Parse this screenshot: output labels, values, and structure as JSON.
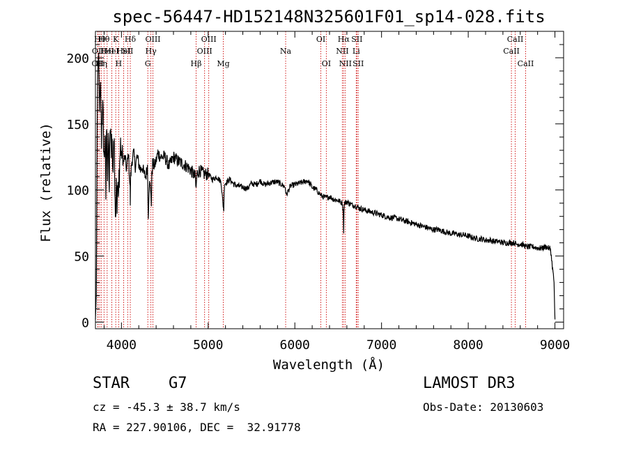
{
  "chart_data": {
    "type": "line",
    "title": "spec-56447-HD152148N325601F01_sp14-028.fits",
    "xlabel": "Wavelength (Å)",
    "ylabel": "Flux (relative)",
    "xlim": [
      3700,
      9100
    ],
    "ylim": [
      -5,
      220
    ],
    "xticks": [
      4000,
      5000,
      6000,
      7000,
      8000,
      9000
    ],
    "yticks": [
      0,
      50,
      100,
      150,
      200
    ],
    "series": [
      {
        "name": "spectrum",
        "x": [
          3700,
          3710,
          3720,
          3730,
          3740,
          3750,
          3760,
          3770,
          3780,
          3790,
          3800,
          3810,
          3820,
          3830,
          3840,
          3850,
          3860,
          3870,
          3880,
          3890,
          3900,
          3910,
          3920,
          3930,
          3933,
          3936,
          3940,
          3950,
          3960,
          3965,
          3968,
          3972,
          3980,
          3990,
          4000,
          4010,
          4020,
          4040,
          4060,
          4080,
          4100,
          4102,
          4106,
          4120,
          4140,
          4160,
          4180,
          4200,
          4220,
          4240,
          4260,
          4280,
          4300,
          4305,
          4310,
          4320,
          4340,
          4345,
          4350,
          4360,
          4380,
          4400,
          4420,
          4450,
          4500,
          4550,
          4600,
          4650,
          4700,
          4750,
          4800,
          4850,
          4861,
          4870,
          4900,
          4950,
          5000,
          5050,
          5100,
          5150,
          5170,
          5180,
          5184,
          5190,
          5200,
          5250,
          5300,
          5350,
          5400,
          5450,
          5500,
          5550,
          5600,
          5650,
          5700,
          5750,
          5800,
          5850,
          5890,
          5900,
          5950,
          6000,
          6050,
          6100,
          6150,
          6200,
          6250,
          6300,
          6350,
          6400,
          6450,
          6500,
          6550,
          6560,
          6563,
          6566,
          6570,
          6600,
          6650,
          6700,
          6750,
          6800,
          6850,
          6900,
          6950,
          7000,
          7050,
          7100,
          7150,
          7200,
          7250,
          7300,
          7350,
          7400,
          7450,
          7500,
          7550,
          7600,
          7650,
          7700,
          7750,
          7800,
          7850,
          7900,
          7950,
          8000,
          8050,
          8100,
          8150,
          8200,
          8250,
          8300,
          8350,
          8400,
          8450,
          8500,
          8540,
          8550,
          8600,
          8650,
          8662,
          8700,
          8750,
          8800,
          8850,
          8900,
          8950,
          8990,
          9000
        ],
        "y": [
          2,
          20,
          150,
          200,
          185,
          160,
          175,
          140,
          165,
          150,
          120,
          145,
          95,
          155,
          110,
          140,
          100,
          150,
          130,
          145,
          110,
          140,
          120,
          90,
          75,
          95,
          115,
          90,
          105,
          85,
          95,
          110,
          120,
          135,
          125,
          130,
          120,
          125,
          115,
          128,
          100,
          90,
          110,
          122,
          128,
          118,
          125,
          120,
          115,
          118,
          112,
          110,
          118,
          95,
          82,
          105,
          100,
          88,
          110,
          120,
          118,
          122,
          128,
          125,
          125,
          118,
          125,
          122,
          120,
          118,
          115,
          110,
          100,
          112,
          115,
          112,
          112,
          108,
          110,
          106,
          90,
          85,
          98,
          105,
          105,
          108,
          104,
          103,
          102,
          101,
          105,
          104,
          107,
          104,
          105,
          106,
          106,
          104,
          102,
          96,
          103,
          104,
          105,
          106,
          107,
          102,
          100,
          96,
          94,
          95,
          93,
          92,
          90,
          80,
          68,
          82,
          90,
          91,
          89,
          88,
          86,
          85,
          84,
          83,
          82,
          81,
          80,
          79,
          79,
          78,
          77,
          76,
          75,
          74,
          73,
          72,
          71,
          70,
          70,
          69,
          68,
          67,
          67,
          66,
          66,
          65,
          64,
          63,
          63,
          62,
          62,
          61,
          61,
          60,
          60,
          60,
          60,
          59,
          59,
          58,
          57,
          57,
          57,
          56,
          56,
          57,
          55,
          30,
          2
        ]
      }
    ],
    "line_markers": [
      {
        "x": 3727,
        "label": "OII",
        "row": 2
      },
      {
        "x": 3730,
        "label": "OII",
        "row": 1
      },
      {
        "x": 3750,
        "label": "Hθ",
        "row": 0
      },
      {
        "x": 3770,
        "label": "Hη",
        "row": 2
      },
      {
        "x": 3799,
        "label": "Hθ",
        "row": 0
      },
      {
        "x": 3835,
        "label": "HeI",
        "row": 1
      },
      {
        "x": 3889,
        "label": "HeI",
        "row": 1
      },
      {
        "x": 3934,
        "label": "K",
        "row": 0
      },
      {
        "x": 3968,
        "label": "H",
        "row": 2
      },
      {
        "x": 4026,
        "label": "HeI",
        "row": 1
      },
      {
        "x": 4072,
        "label": "SII",
        "row": 1
      },
      {
        "x": 4102,
        "label": "Hδ",
        "row": 0
      },
      {
        "x": 4304,
        "label": "G",
        "row": 2
      },
      {
        "x": 4340,
        "label": "Hγ",
        "row": 1
      },
      {
        "x": 4363,
        "label": "OIII",
        "row": 0
      },
      {
        "x": 4861,
        "label": "Hβ",
        "row": 2
      },
      {
        "x": 4959,
        "label": "OIII",
        "row": 1
      },
      {
        "x": 5007,
        "label": "OIII",
        "row": 0
      },
      {
        "x": 5175,
        "label": "Mg",
        "row": 2
      },
      {
        "x": 5894,
        "label": "Na",
        "row": 1
      },
      {
        "x": 6300,
        "label": "OI",
        "row": 0
      },
      {
        "x": 6363,
        "label": "OI",
        "row": 2
      },
      {
        "x": 6548,
        "label": "NII",
        "row": 1
      },
      {
        "x": 6563,
        "label": "Hα",
        "row": 0
      },
      {
        "x": 6583,
        "label": "NII",
        "row": 2
      },
      {
        "x": 6708,
        "label": "Li",
        "row": 1
      },
      {
        "x": 6716,
        "label": "SII",
        "row": 0
      },
      {
        "x": 6731,
        "label": "SII",
        "row": 2
      },
      {
        "x": 8498,
        "label": "CaII",
        "row": 1
      },
      {
        "x": 8542,
        "label": "CaII",
        "row": 0
      },
      {
        "x": 8662,
        "label": "CaII",
        "row": 2
      }
    ]
  },
  "info": {
    "object_class": "STAR",
    "subclass": "G7",
    "survey": "LAMOST DR3",
    "redshift": "cz = -45.3 ± 38.7 km/s",
    "obs_date": "Obs-Date: 20130603",
    "coords": "RA = 227.90106, DEC =  32.91778"
  },
  "colors": {
    "spectrum": "#000000",
    "marker": "#cc0000",
    "axis": "#000000"
  }
}
